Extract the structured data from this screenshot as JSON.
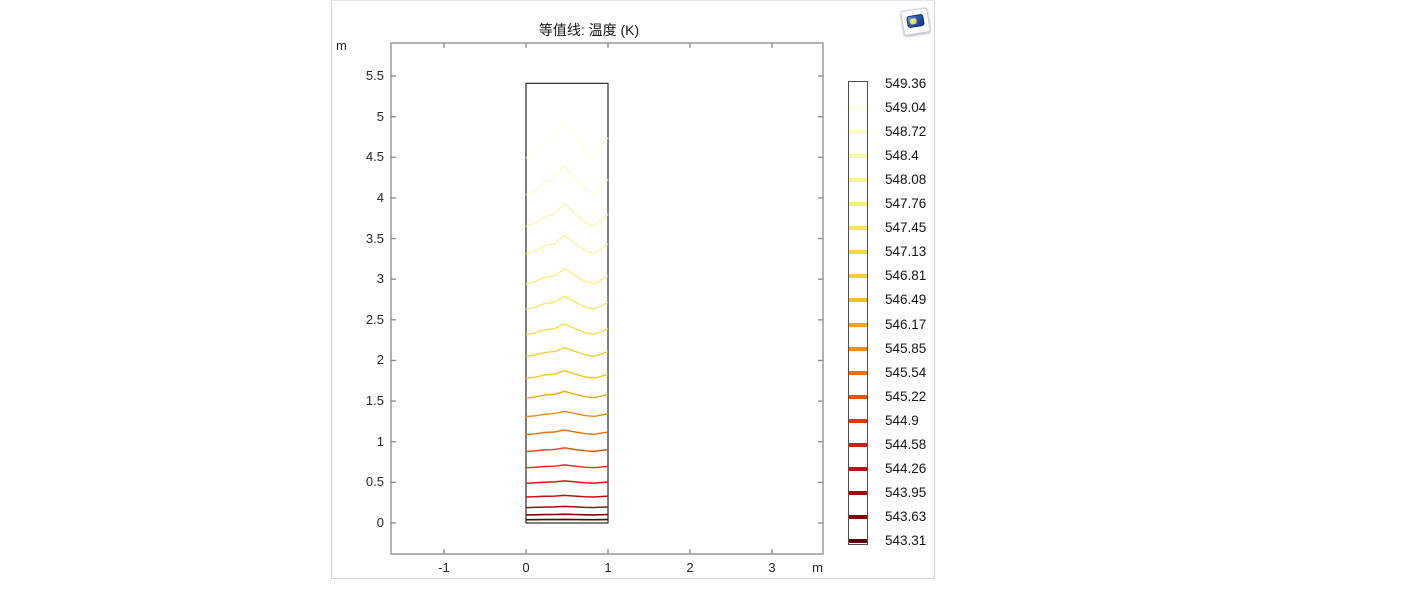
{
  "window": {
    "name": "COMSOL graphics view",
    "thumbnail_icon": "plot-group-thumbnail-icon"
  },
  "chart_data": {
    "type": "contour",
    "title": "等值线: 温度 (K)",
    "contour_interval": 0.32,
    "legend_position": "right",
    "grid": false,
    "axes": {
      "x": {
        "unit": "m",
        "tick_labels": [
          "-1",
          "0",
          "1",
          "2",
          "3"
        ],
        "tick_values": [
          -1,
          0,
          1,
          2,
          3
        ],
        "range": [
          -1.65,
          3.62
        ]
      },
      "y": {
        "unit": "m",
        "tick_labels": [
          "5.5",
          "5",
          "4.5",
          "4",
          "3.5",
          "3",
          "2.5",
          "2",
          "1.5",
          "1",
          "0.5",
          "0"
        ],
        "tick_values": [
          5.5,
          5,
          4.5,
          4,
          3.5,
          3,
          2.5,
          2,
          1.5,
          1,
          0.5,
          0
        ],
        "range": [
          -0.38,
          5.9
        ]
      }
    },
    "domain_rect": {
      "x": [
        0,
        1
      ],
      "y": [
        0,
        5.41
      ]
    },
    "levels": [
      {
        "value": 549.36,
        "label": "549.36",
        "color": "#ffffff"
      },
      {
        "value": 549.04,
        "label": "549.04",
        "color": "#fffde2"
      },
      {
        "value": 548.72,
        "label": "548.72",
        "color": "#fbfbc6"
      },
      {
        "value": 548.4,
        "label": "548.4",
        "color": "#f8f8a8"
      },
      {
        "value": 548.08,
        "label": "548.08",
        "color": "#f6f68a"
      },
      {
        "value": 547.76,
        "label": "547.76",
        "color": "#f4f06c"
      },
      {
        "value": 547.45,
        "label": "547.45",
        "color": "#f4e657"
      },
      {
        "value": 547.13,
        "label": "547.13",
        "color": "#f3da44"
      },
      {
        "value": 546.81,
        "label": "546.81",
        "color": "#f3ce32"
      },
      {
        "value": 546.49,
        "label": "546.49",
        "color": "#f2c023"
      },
      {
        "value": 546.17,
        "label": "546.17",
        "color": "#f2a51c"
      },
      {
        "value": 545.85,
        "label": "545.85",
        "color": "#ef8c15"
      },
      {
        "value": 545.54,
        "label": "545.54",
        "color": "#ea7011"
      },
      {
        "value": 545.22,
        "label": "545.22",
        "color": "#e5520e"
      },
      {
        "value": 544.9,
        "label": "544.9",
        "color": "#e3340e"
      },
      {
        "value": 544.58,
        "label": "544.58",
        "color": "#de1510"
      },
      {
        "value": 544.26,
        "label": "544.26",
        "color": "#c11010"
      },
      {
        "value": 543.95,
        "label": "543.95",
        "color": "#a20b0b"
      },
      {
        "value": 543.63,
        "label": "543.63",
        "color": "#7f0707"
      },
      {
        "value": 543.31,
        "label": "543.31",
        "color": "#5c0404"
      }
    ],
    "contours": [
      {
        "level": 549.04,
        "base": 4.49,
        "amp": 0.48
      },
      {
        "level": 548.72,
        "base": 4.04,
        "amp": 0.36
      },
      {
        "level": 548.4,
        "base": 3.65,
        "amp": 0.28
      },
      {
        "level": 548.08,
        "base": 3.31,
        "amp": 0.23
      },
      {
        "level": 547.76,
        "base": 2.94,
        "amp": 0.19
      },
      {
        "level": 547.45,
        "base": 2.63,
        "amp": 0.16
      },
      {
        "level": 547.13,
        "base": 2.32,
        "amp": 0.13
      },
      {
        "level": 546.81,
        "base": 2.05,
        "amp": 0.11
      },
      {
        "level": 546.49,
        "base": 1.78,
        "amp": 0.095
      },
      {
        "level": 546.17,
        "base": 1.54,
        "amp": 0.08
      },
      {
        "level": 545.85,
        "base": 1.31,
        "amp": 0.065
      },
      {
        "level": 545.54,
        "base": 1.09,
        "amp": 0.055
      },
      {
        "level": 545.22,
        "base": 0.88,
        "amp": 0.045
      },
      {
        "level": 544.9,
        "base": 0.68,
        "amp": 0.035
      },
      {
        "level": 544.58,
        "base": 0.49,
        "amp": 0.028
      },
      {
        "level": 544.26,
        "base": 0.32,
        "amp": 0.02
      },
      {
        "level": 543.95,
        "base": 0.19,
        "amp": 0.014
      },
      {
        "level": 543.63,
        "base": 0.1,
        "amp": 0.008
      },
      {
        "level": 543.31,
        "base": 0.04,
        "amp": 0.004
      }
    ],
    "shape": {
      "t": [
        0,
        0.1,
        0.22,
        0.35,
        0.47,
        0.6,
        0.72,
        0.83,
        1.0
      ],
      "f": [
        0,
        0.12,
        0.42,
        0.55,
        1.0,
        0.55,
        0.18,
        0.02,
        0.52
      ]
    }
  }
}
